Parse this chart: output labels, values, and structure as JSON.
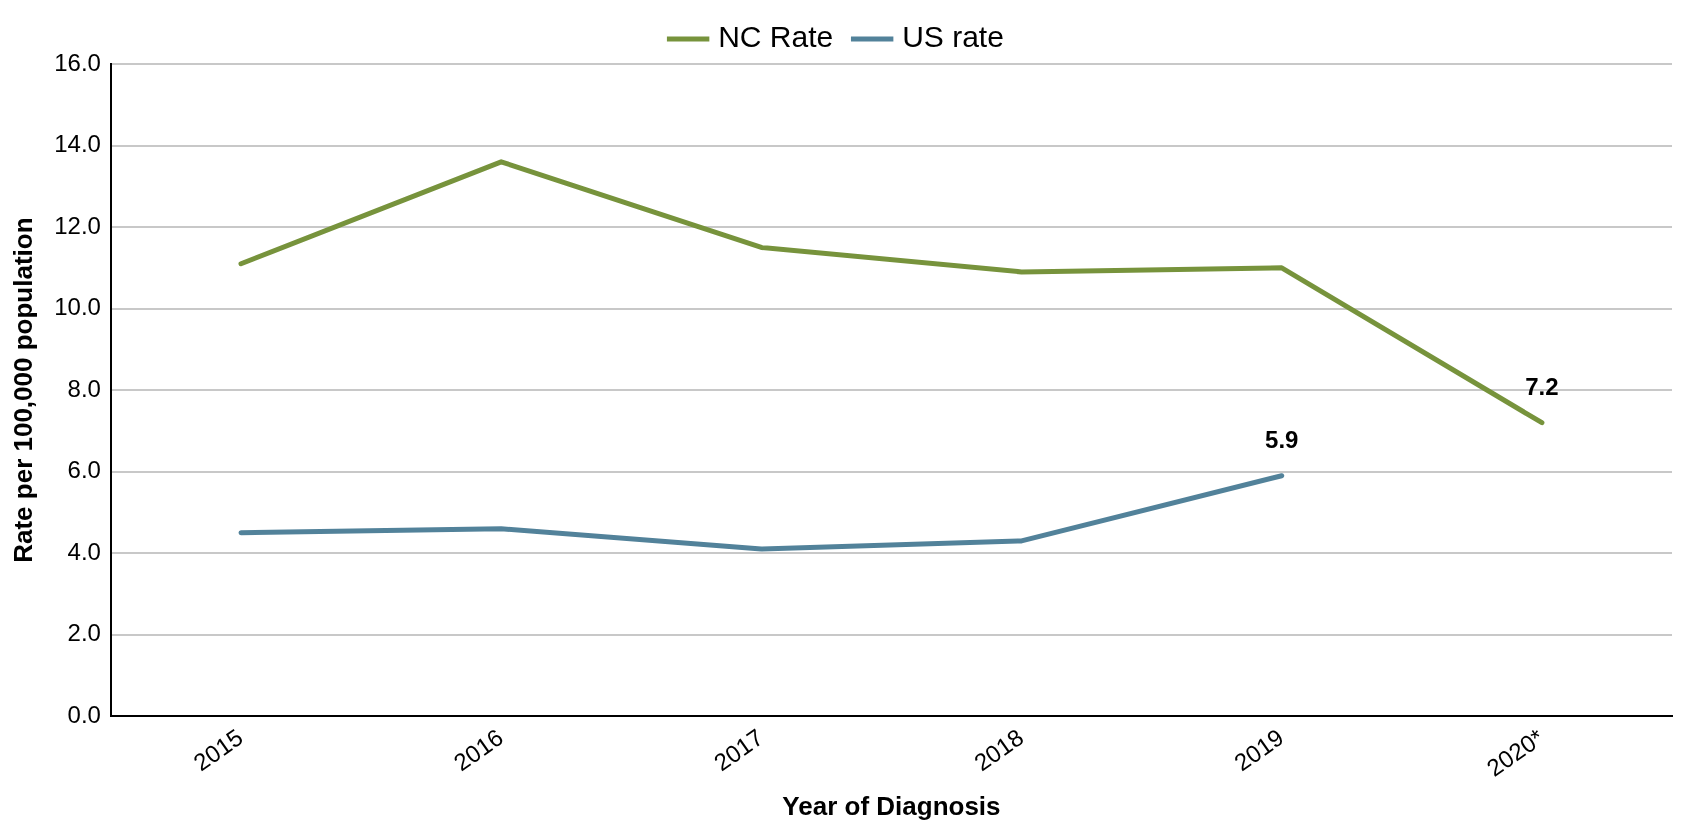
{
  "chart_data": {
    "type": "line",
    "xlabel": "Year of Diagnosis",
    "ylabel": "Rate per 100,000 population",
    "categories": [
      "2015",
      "2016",
      "2017",
      "2018",
      "2019",
      "2020*"
    ],
    "series": [
      {
        "name": "NC Rate",
        "color": "#77933c",
        "values": [
          11.1,
          13.6,
          11.5,
          10.9,
          11.0,
          7.2
        ],
        "value_labels": [
          null,
          null,
          null,
          null,
          null,
          "7.2"
        ]
      },
      {
        "name": "US rate",
        "color": "#52829a",
        "values": [
          4.5,
          4.6,
          4.1,
          4.3,
          5.9,
          null
        ],
        "value_labels": [
          null,
          null,
          null,
          null,
          "5.9",
          null
        ]
      }
    ],
    "ylim": [
      0,
      16
    ],
    "yticks": [
      {
        "value": 0,
        "label": "0.0"
      },
      {
        "value": 2,
        "label": "2.0"
      },
      {
        "value": 4,
        "label": "4.0"
      },
      {
        "value": 6,
        "label": "6.0"
      },
      {
        "value": 8,
        "label": "8.0"
      },
      {
        "value": 10,
        "label": "10.0"
      },
      {
        "value": 12,
        "label": "12.0"
      },
      {
        "value": 14,
        "label": "14.0"
      },
      {
        "value": 16,
        "label": "16.0"
      }
    ],
    "grid": "y",
    "legend": "top",
    "marker": "none",
    "line_style": "solid"
  }
}
